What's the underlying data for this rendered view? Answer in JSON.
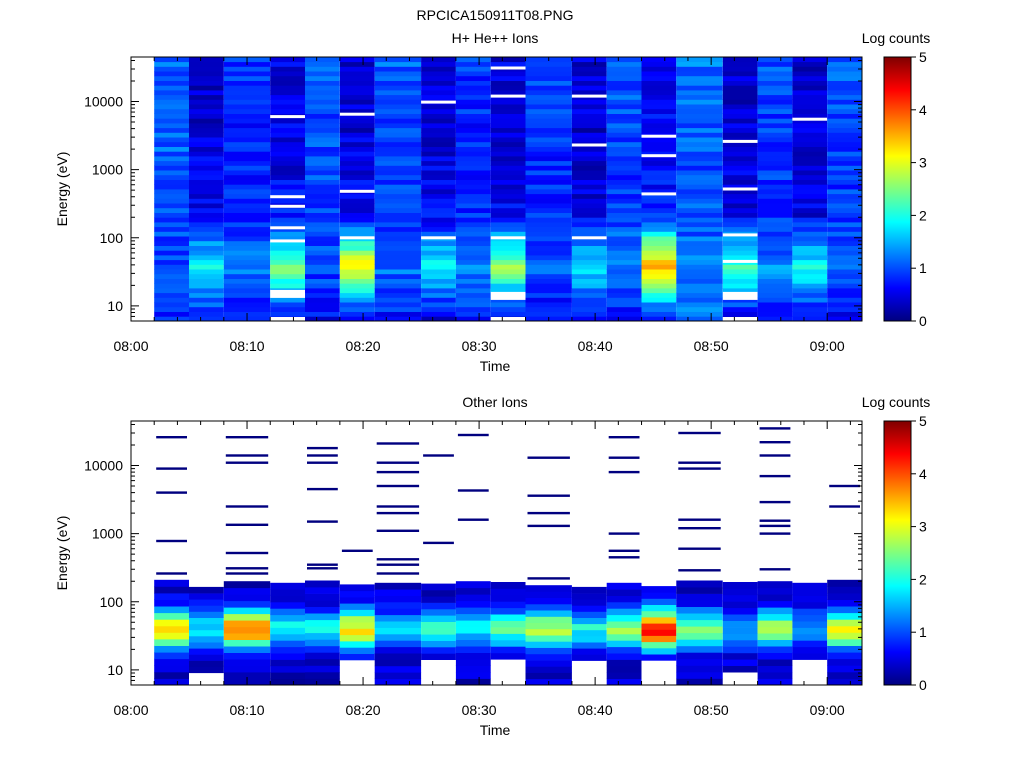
{
  "figure": {
    "title": "RPCICA150911T08.PNG"
  },
  "palette": [
    "#00007f",
    "#0000ff",
    "#007fff",
    "#00ffff",
    "#7fff7f",
    "#ffff00",
    "#ff7f00",
    "#ff0000",
    "#7f0000"
  ],
  "chart_data": [
    {
      "type": "heatmap",
      "title": "H+ He++ Ions",
      "xlabel": "Time",
      "ylabel": "Energy (eV)",
      "yscale": "log",
      "ylim": [
        6,
        45000
      ],
      "xlim": [
        "08:00",
        "09:03"
      ],
      "x_ticks": [
        "08:00",
        "08:10",
        "08:20",
        "08:30",
        "08:40",
        "08:50",
        "09:00"
      ],
      "y_ticks": [
        {
          "value": 10,
          "label": "10"
        },
        {
          "value": 100,
          "label": "100"
        },
        {
          "value": 1000,
          "label": "1000"
        },
        {
          "value": 10000,
          "label": "10000"
        }
      ],
      "colorbar": {
        "label": "Log counts",
        "min": 0,
        "max": 5,
        "ticks": [
          "0",
          "1",
          "2",
          "3",
          "4",
          "5"
        ]
      },
      "columns": [
        {
          "start": "08:02",
          "end": "08:05",
          "profile": [
            0.8,
            0.9,
            1.0,
            1.1,
            1.1,
            1.1
          ],
          "blanks": []
        },
        {
          "start": "08:05",
          "end": "08:08",
          "profile": [
            0.7,
            1.9,
            0.6,
            0.5,
            0.4,
            0.4
          ],
          "blanks": []
        },
        {
          "start": "08:08",
          "end": "08:12",
          "profile": [
            0.6,
            1.2,
            0.8,
            0.8,
            0.8,
            0.9
          ],
          "blanks": []
        },
        {
          "start": "08:12",
          "end": "08:15",
          "profile": [
            0.6,
            2.5,
            0.7,
            0.5,
            0.5,
            0.5
          ],
          "blanks": [
            6,
            15,
            90,
            140,
            290,
            400,
            6000
          ]
        },
        {
          "start": "08:15",
          "end": "08:18",
          "profile": [
            0.6,
            1.0,
            0.9,
            1.0,
            1.0,
            1.1
          ],
          "blanks": []
        },
        {
          "start": "08:18",
          "end": "08:21",
          "profile": [
            0.4,
            3.2,
            0.6,
            0.5,
            0.4,
            0.4
          ],
          "blanks": [
            100,
            480,
            6500
          ]
        },
        {
          "start": "08:21",
          "end": "08:25",
          "profile": [
            0.7,
            1.2,
            0.9,
            1.0,
            1.0,
            1.1
          ],
          "blanks": []
        },
        {
          "start": "08:25",
          "end": "08:28",
          "profile": [
            0.5,
            1.9,
            0.6,
            0.5,
            0.4,
            0.4
          ],
          "blanks": [
            100,
            9800
          ]
        },
        {
          "start": "08:28",
          "end": "08:31",
          "profile": [
            0.7,
            1.3,
            0.8,
            0.8,
            0.8,
            0.9
          ],
          "blanks": []
        },
        {
          "start": "08:31",
          "end": "08:34",
          "profile": [
            0.4,
            2.7,
            0.6,
            0.5,
            0.4,
            0.5
          ],
          "blanks": [
            6,
            14,
            100,
            12000,
            31000
          ]
        },
        {
          "start": "08:34",
          "end": "08:38",
          "profile": [
            0.6,
            1.1,
            0.8,
            0.8,
            0.9,
            1.0
          ],
          "blanks": []
        },
        {
          "start": "08:38",
          "end": "08:41",
          "profile": [
            0.5,
            1.9,
            0.5,
            0.4,
            0.4,
            0.4
          ],
          "blanks": [
            100,
            2300,
            12000
          ]
        },
        {
          "start": "08:41",
          "end": "08:44",
          "profile": [
            0.7,
            1.3,
            0.9,
            0.9,
            1.0,
            1.0
          ],
          "blanks": []
        },
        {
          "start": "08:44",
          "end": "08:47",
          "profile": [
            0.6,
            3.6,
            0.8,
            0.6,
            0.6,
            0.6
          ],
          "blanks": [
            440,
            1600,
            3100
          ]
        },
        {
          "start": "08:47",
          "end": "08:51",
          "profile": [
            1.2,
            1.2,
            1.0,
            1.0,
            1.1,
            1.2
          ],
          "blanks": []
        },
        {
          "start": "08:51",
          "end": "08:54",
          "profile": [
            0.5,
            2.2,
            0.5,
            0.5,
            0.4,
            0.4
          ],
          "blanks": [
            6,
            14,
            45,
            110,
            520,
            2600
          ]
        },
        {
          "start": "08:54",
          "end": "08:57",
          "profile": [
            0.7,
            1.3,
            0.8,
            0.9,
            0.9,
            1.0
          ],
          "blanks": []
        },
        {
          "start": "08:57",
          "end": "09:00",
          "profile": [
            0.6,
            2.0,
            0.5,
            0.5,
            0.4,
            0.4
          ],
          "blanks": [
            5500
          ]
        },
        {
          "start": "09:00",
          "end": "09:03",
          "profile": [
            0.6,
            1.2,
            0.9,
            0.9,
            1.0,
            1.1
          ],
          "blanks": []
        }
      ]
    },
    {
      "type": "heatmap",
      "title": "Other Ions",
      "xlabel": "Time",
      "ylabel": "Energy (eV)",
      "yscale": "log",
      "ylim": [
        6,
        45000
      ],
      "xlim": [
        "08:00",
        "09:03"
      ],
      "x_ticks": [
        "08:00",
        "08:10",
        "08:20",
        "08:30",
        "08:40",
        "08:50",
        "09:00"
      ],
      "y_ticks": [
        {
          "value": 10,
          "label": "10"
        },
        {
          "value": 100,
          "label": "100"
        },
        {
          "value": 1000,
          "label": "1000"
        },
        {
          "value": 10000,
          "label": "10000"
        }
      ],
      "colorbar": {
        "label": "Log counts",
        "min": 0,
        "max": 5,
        "ticks": [
          "0",
          "1",
          "2",
          "3",
          "4",
          "5"
        ]
      },
      "columns": [
        {
          "start": "08:02",
          "end": "08:05",
          "peak": 2.8,
          "top": 210,
          "floor": 6,
          "lines": [
            260,
            780,
            4000,
            9000,
            26000
          ]
        },
        {
          "start": "08:05",
          "end": "08:08",
          "peak": 1.4,
          "top": 165,
          "floor": 9,
          "lines": []
        },
        {
          "start": "08:08",
          "end": "08:12",
          "peak": 3.5,
          "top": 200,
          "floor": 6,
          "lines": [
            260,
            310,
            520,
            1350,
            2500,
            11000,
            14000,
            26000
          ]
        },
        {
          "start": "08:12",
          "end": "08:15",
          "peak": 1.6,
          "top": 190,
          "floor": 6,
          "lines": []
        },
        {
          "start": "08:15",
          "end": "08:18",
          "peak": 1.5,
          "top": 205,
          "floor": 6,
          "lines": [
            310,
            350,
            1500,
            4500,
            11000,
            14000,
            18000
          ]
        },
        {
          "start": "08:18",
          "end": "08:21",
          "peak": 2.8,
          "top": 180,
          "floor": 15,
          "lines": [
            560
          ]
        },
        {
          "start": "08:21",
          "end": "08:25",
          "peak": 1.3,
          "top": 190,
          "floor": 6,
          "lines": [
            260,
            350,
            420,
            1100,
            2000,
            2500,
            5000,
            8000,
            11000,
            21000
          ]
        },
        {
          "start": "08:25",
          "end": "08:28",
          "peak": 1.8,
          "top": 185,
          "floor": 15,
          "lines": [
            730,
            14000
          ]
        },
        {
          "start": "08:28",
          "end": "08:31",
          "peak": 1.5,
          "top": 200,
          "floor": 6,
          "lines": [
            1600,
            4300,
            28000
          ]
        },
        {
          "start": "08:31",
          "end": "08:34",
          "peak": 1.9,
          "top": 195,
          "floor": 15,
          "lines": []
        },
        {
          "start": "08:34",
          "end": "08:38",
          "peak": 2.4,
          "top": 175,
          "floor": 6,
          "lines": [
            220,
            1300,
            2000,
            3600,
            13000
          ]
        },
        {
          "start": "08:38",
          "end": "08:41",
          "peak": 1.6,
          "top": 165,
          "floor": 15,
          "lines": []
        },
        {
          "start": "08:41",
          "end": "08:44",
          "peak": 2.2,
          "top": 190,
          "floor": 6,
          "lines": [
            450,
            560,
            1000,
            8000,
            13000,
            26000
          ]
        },
        {
          "start": "08:44",
          "end": "08:47",
          "peak": 4.1,
          "top": 170,
          "floor": 15,
          "lines": []
        },
        {
          "start": "08:47",
          "end": "08:51",
          "peak": 2.0,
          "top": 205,
          "floor": 6,
          "lines": [
            290,
            600,
            1200,
            1600,
            9000,
            11000,
            30000
          ]
        },
        {
          "start": "08:51",
          "end": "08:54",
          "peak": 1.1,
          "top": 195,
          "floor": 9,
          "lines": []
        },
        {
          "start": "08:54",
          "end": "08:57",
          "peak": 2.4,
          "top": 200,
          "floor": 6,
          "lines": [
            300,
            1000,
            1300,
            1550,
            2900,
            7000,
            14000,
            22000,
            35000
          ]
        },
        {
          "start": "08:57",
          "end": "09:00",
          "peak": 1.1,
          "top": 190,
          "floor": 15,
          "lines": []
        },
        {
          "start": "09:00",
          "end": "09:03",
          "peak": 2.7,
          "top": 210,
          "floor": 6,
          "lines": [
            2500,
            5000
          ]
        }
      ]
    }
  ]
}
